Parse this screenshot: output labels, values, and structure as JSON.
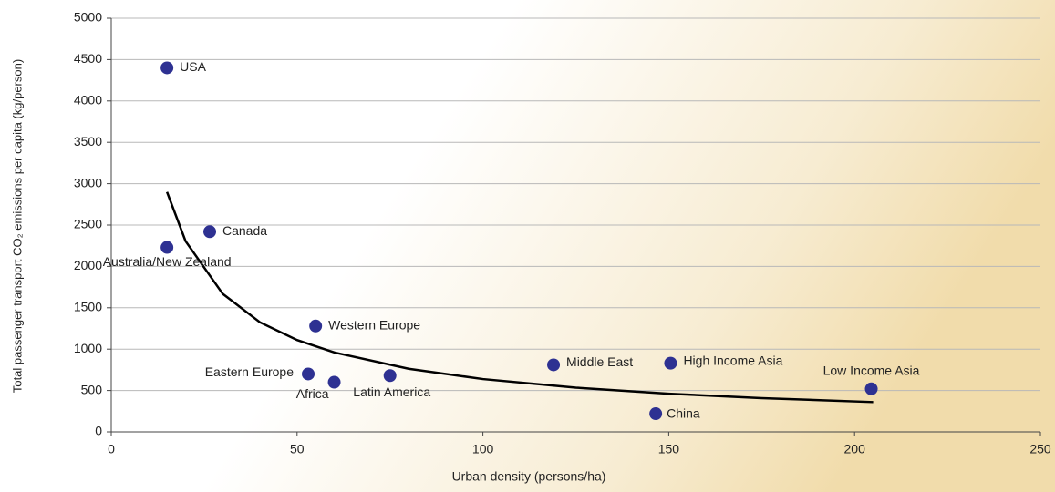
{
  "chart_data": {
    "type": "scatter",
    "x_label": "Urban density (persons/ha)",
    "y_label": "Total passenger transport CO₂ emissions per capita (kg/person)",
    "xlim": [
      0,
      250
    ],
    "xticks": [
      0,
      50,
      100,
      150,
      200,
      250
    ],
    "ylim": [
      0,
      5000
    ],
    "yticks": [
      0,
      500,
      1000,
      1500,
      2000,
      2500,
      3000,
      3500,
      4000,
      4500,
      5000
    ],
    "grid": true,
    "color": "#2e3192",
    "labels": [
      "USA",
      "Canada",
      "Australia/New Zealand",
      "Western Europe",
      "Eastern Europe",
      "Africa",
      "Latin America",
      "Middle East",
      "High Income Asia",
      "China",
      "Low Income Asia"
    ],
    "x": [
      15,
      26.5,
      15,
      55,
      53,
      60,
      75,
      119,
      150.5,
      146.5,
      204.5
    ],
    "values": [
      4400,
      2420,
      2230,
      1280,
      700,
      600,
      680,
      810,
      830,
      220,
      520
    ],
    "trend": {
      "color": "#000000",
      "x": [
        15,
        20,
        30,
        40,
        50,
        60,
        80,
        100,
        125,
        150,
        175,
        205
      ],
      "values": [
        2900,
        2305,
        1668,
        1325,
        1110,
        960,
        763,
        638,
        534,
        461,
        408,
        360
      ]
    }
  }
}
